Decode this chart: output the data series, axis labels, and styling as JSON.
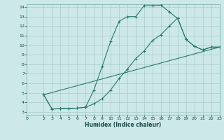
{
  "xlabel": "Humidex (Indice chaleur)",
  "bg_color": "#cce8e8",
  "line_color": "#2a7a70",
  "grid_color": "#aacaca",
  "xlim": [
    0,
    23
  ],
  "ylim": [
    3,
    14
  ],
  "xticks": [
    0,
    2,
    3,
    4,
    5,
    6,
    7,
    8,
    9,
    10,
    11,
    12,
    13,
    14,
    15,
    16,
    17,
    18,
    19,
    20,
    21,
    22,
    23
  ],
  "yticks": [
    3,
    4,
    5,
    6,
    7,
    8,
    9,
    10,
    11,
    12,
    13,
    14
  ],
  "curve1_x": [
    2,
    3,
    4,
    5,
    6,
    7,
    8,
    9,
    10,
    11,
    12,
    13,
    14,
    15,
    16,
    17,
    18,
    19,
    20,
    21,
    22,
    23
  ],
  "curve1_y": [
    4.8,
    3.3,
    3.35,
    3.35,
    3.4,
    3.5,
    5.3,
    7.8,
    10.4,
    12.5,
    13.0,
    13.0,
    14.15,
    14.15,
    14.2,
    13.5,
    12.8,
    10.6,
    9.9,
    9.5,
    9.8,
    9.8
  ],
  "curve2_x": [
    2,
    3,
    4,
    5,
    6,
    7,
    8,
    9,
    10,
    11,
    12,
    13,
    14,
    15,
    16,
    17,
    18,
    19,
    20,
    21,
    22,
    23
  ],
  "curve2_y": [
    4.8,
    3.3,
    3.35,
    3.35,
    3.4,
    3.5,
    3.85,
    4.4,
    5.3,
    6.5,
    7.5,
    8.6,
    9.4,
    10.5,
    11.1,
    12.0,
    12.85,
    10.6,
    9.9,
    9.5,
    9.8,
    9.8
  ],
  "curve3_x": [
    2,
    23
  ],
  "curve3_y": [
    4.8,
    9.8
  ]
}
